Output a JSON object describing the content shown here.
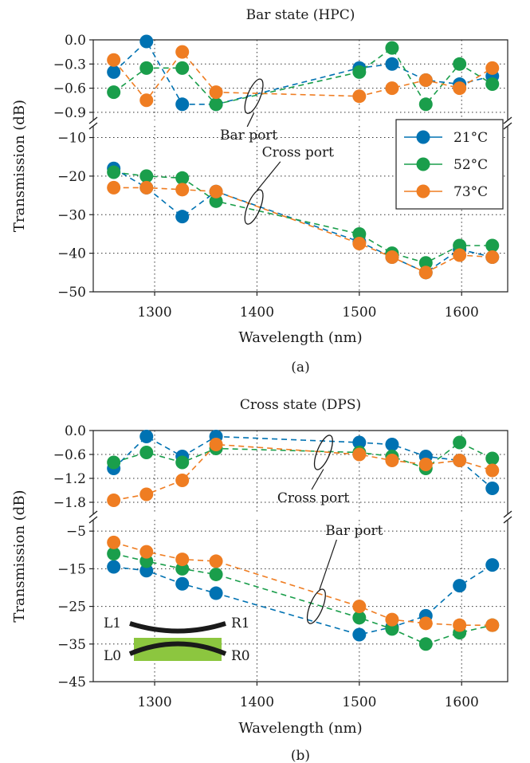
{
  "colors": {
    "21": "#0072b2",
    "52": "#1a9e4b",
    "73": "#ef7d22",
    "inset_fill": "#8cc63f",
    "waveguide": "#1a1a1a"
  },
  "chart_data": [
    {
      "type": "line",
      "title": "Bar state (HPC)",
      "caption": "(a)",
      "xlabel": "Wavelength (nm)",
      "ylabel": "Transmission (dB)",
      "xlim": [
        1240,
        1645
      ],
      "x_ticks": [
        1300,
        1400,
        1500,
        1600
      ],
      "x_tick_labels": [
        "1300",
        "1400",
        "1500",
        "1600"
      ],
      "broken_y_axis": true,
      "upper_ylim": [
        -1.0,
        0.0
      ],
      "upper_yticks": [
        0.0,
        -0.3,
        -0.6,
        -0.9
      ],
      "upper_ytick_labels": [
        "0.0",
        "−0.3",
        "−0.6",
        "−0.9"
      ],
      "lower_ylim": [
        -50,
        -7
      ],
      "lower_yticks": [
        -10,
        -20,
        -30,
        -40,
        -50
      ],
      "lower_ytick_labels": [
        "−10",
        "−20",
        "−30",
        "−40",
        "−50"
      ],
      "grid": true,
      "legend": {
        "placement": "right",
        "entries": [
          "21°C",
          "52°C",
          "73°C"
        ]
      },
      "x": [
        1260,
        1292,
        1327,
        1360,
        1500,
        1532,
        1565,
        1598,
        1630
      ],
      "series": [
        {
          "name": "21°C",
          "color_key": "21",
          "upper_values": [
            -0.4,
            -0.02,
            -0.8,
            -0.8,
            -0.35,
            -0.3,
            -0.5,
            -0.55,
            -0.45
          ],
          "lower_values": [
            -18,
            -23,
            -30.5,
            -24,
            -37,
            -41,
            -45,
            -39,
            -41
          ]
        },
        {
          "name": "52°C",
          "color_key": "52",
          "upper_values": [
            -0.65,
            -0.35,
            -0.35,
            -0.8,
            -0.4,
            -0.1,
            -0.8,
            -0.3,
            -0.55
          ],
          "lower_values": [
            -19,
            -20,
            -20.5,
            -26.5,
            -35,
            -40,
            -42.5,
            -38,
            -38
          ]
        },
        {
          "name": "73°C",
          "color_key": "73",
          "upper_values": [
            -0.25,
            -0.75,
            -0.15,
            -0.65,
            -0.7,
            -0.6,
            -0.5,
            -0.6,
            -0.35
          ],
          "lower_values": [
            -23,
            -23,
            -23.5,
            -24,
            -37.5,
            -41,
            -45,
            -40.5,
            -41
          ]
        }
      ],
      "annotations": [
        {
          "text": "Bar port",
          "segment": "upper",
          "ellipse_x": 1397,
          "ellipse_y": -0.7,
          "label_x": 1392,
          "label_y": -10.5
        },
        {
          "text": "Cross port",
          "segment": "lower",
          "ellipse_x": 1397,
          "ellipse_y": -28,
          "label_x": 1440,
          "label_y": -15
        }
      ]
    },
    {
      "type": "line",
      "title": "Cross state (DPS)",
      "caption": "(b)",
      "xlabel": "Wavelength (nm)",
      "ylabel": "Transmission (dB)",
      "xlim": [
        1240,
        1645
      ],
      "x_ticks": [
        1300,
        1400,
        1500,
        1600
      ],
      "x_tick_labels": [
        "1300",
        "1400",
        "1500",
        "1600"
      ],
      "broken_y_axis": true,
      "upper_ylim": [
        -2.1,
        0.0
      ],
      "upper_yticks": [
        0.0,
        -0.6,
        -1.2,
        -1.8
      ],
      "upper_ytick_labels": [
        "0.0",
        "−0.6",
        "−1.2",
        "−1.8"
      ],
      "lower_ylim": [
        -45,
        -2
      ],
      "lower_yticks": [
        -5,
        -15,
        -25,
        -35,
        -45
      ],
      "lower_ytick_labels": [
        "−5",
        "−15",
        "−25",
        "−35",
        "−45"
      ],
      "grid": true,
      "x": [
        1260,
        1292,
        1327,
        1360,
        1500,
        1532,
        1565,
        1598,
        1630
      ],
      "series": [
        {
          "name": "21°C",
          "color_key": "21",
          "upper_values": [
            -0.95,
            -0.15,
            -0.65,
            -0.15,
            -0.3,
            -0.35,
            -0.65,
            -0.75,
            -1.45
          ],
          "lower_values": [
            -14.5,
            -15.5,
            -19,
            -21.5,
            -32.5,
            -30.5,
            -27.5,
            -19.5,
            -14
          ]
        },
        {
          "name": "52°C",
          "color_key": "52",
          "upper_values": [
            -0.8,
            -0.55,
            -0.8,
            -0.45,
            -0.55,
            -0.65,
            -0.95,
            -0.3,
            -0.7
          ],
          "lower_values": [
            -11,
            -13,
            -15,
            -16.5,
            -28,
            -31,
            -35,
            -32,
            -30
          ]
        },
        {
          "name": "73°C",
          "color_key": "73",
          "upper_values": [
            -1.75,
            -1.6,
            -1.25,
            -0.35,
            -0.6,
            -0.75,
            -0.85,
            -0.75,
            -1.0
          ],
          "lower_values": [
            -8,
            -10.5,
            -12.5,
            -13,
            -25,
            -28.5,
            -29.5,
            -30,
            -30
          ]
        }
      ],
      "annotations": [
        {
          "text": "Cross port",
          "segment": "upper",
          "ellipse_x": 1465,
          "ellipse_y": -0.55,
          "label_x": 1455,
          "label_y": -1.8
        },
        {
          "text": "Bar port",
          "segment": "lower",
          "ellipse_x": 1458,
          "ellipse_y": -25,
          "label_x": 1495,
          "label_y": -6
        }
      ],
      "inset": {
        "labels": {
          "l1": "L1",
          "r1": "R1",
          "l0": "L0",
          "r0": "R0"
        }
      }
    }
  ]
}
